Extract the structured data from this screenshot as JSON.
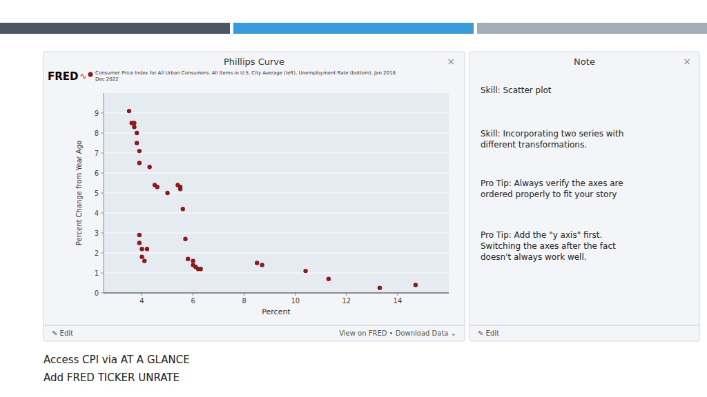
{
  "chart_data": {
    "type": "scatter",
    "title": "Phillips Curve",
    "xlabel": "Percent",
    "ylabel": "Percent Change from Year Ago",
    "x": [
      3.5,
      3.6,
      3.7,
      3.7,
      3.8,
      3.8,
      3.9,
      3.9,
      3.9,
      3.9,
      4.0,
      4.0,
      4.1,
      4.2,
      4.3,
      4.5,
      4.6,
      5.0,
      5.4,
      5.5,
      5.5,
      5.6,
      5.7,
      5.8,
      6.0,
      6.0,
      6.1,
      6.2,
      6.3,
      8.5,
      8.7,
      10.4,
      11.3,
      13.3,
      14.7
    ],
    "series": [
      {
        "name": "Consumer Price Index for All Urban Consumers: All Items in U.S. City Average (left), Unemployment Rate (bottom), Jan 2018\nDec 2022",
        "color": "#8B1A1A",
        "marker": "circle",
        "values": [
          9.1,
          8.5,
          8.3,
          8.5,
          8.0,
          7.5,
          7.1,
          6.5,
          2.9,
          2.5,
          2.2,
          1.8,
          1.6,
          2.2,
          6.3,
          5.4,
          5.3,
          5.0,
          5.4,
          5.3,
          5.2,
          4.2,
          2.7,
          1.7,
          1.6,
          1.4,
          1.3,
          1.2,
          1.2,
          1.5,
          1.4,
          1.1,
          0.7,
          0.25,
          0.4
        ]
      }
    ],
    "xlim": [
      2.5,
      16.0
    ],
    "ylim": [
      0,
      10
    ],
    "xticks": [
      4,
      6,
      8,
      10,
      12,
      14
    ],
    "yticks": [
      0,
      1,
      2,
      3,
      4,
      5,
      6,
      7,
      8,
      9
    ],
    "grid": true,
    "annotations": [
      {
        "text": "×"
      },
      {
        "text": "FRED"
      },
      {
        "text": "∿"
      },
      {
        "text": "✎ Edit"
      },
      {
        "text": "View on FRED • Download Data ⌄"
      },
      {
        "text": "Note"
      },
      {
        "text": "×"
      },
      {
        "text": "Skill:  Scatter plot"
      },
      {
        "text": "Skill:  Incorporating two series with\ndifferent transformations."
      },
      {
        "text": "Pro Tip:  Always verify the axes are\nordered properly to fit your story"
      },
      {
        "text": "Pro Tip:  Add the \"y axis\" first.\nSwitching the axes after the fact\ndoesn't always work well."
      },
      {
        "text": "✎ Edit"
      },
      {
        "text": "Access CPI via AT A GLANCE"
      },
      {
        "text": "Add FRED TICKER UNRATE"
      }
    ]
  }
}
